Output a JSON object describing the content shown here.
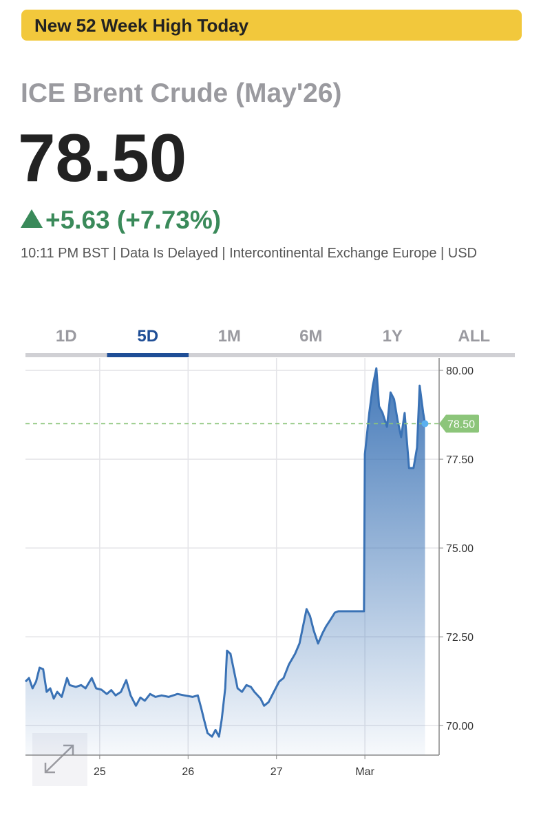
{
  "header": {
    "banner": "New 52 Week High Today",
    "name": "ICE Brent Crude (May'26)",
    "price": "78.50",
    "change": "+5.63 (+7.73%)",
    "meta": "10:11 PM BST | Data Is Delayed | Intercontinental Exchange Europe | USD"
  },
  "tabs": {
    "items": [
      "1D",
      "5D",
      "1M",
      "6M",
      "1Y",
      "ALL"
    ],
    "selected": "5D"
  },
  "chart_data": {
    "type": "area",
    "x": [
      24.16,
      24.2,
      24.24,
      24.28,
      24.32,
      24.36,
      24.4,
      24.44,
      24.48,
      24.52,
      24.57,
      24.63,
      24.66,
      24.73,
      24.79,
      24.84,
      24.91,
      24.96,
      25.02,
      25.08,
      25.13,
      25.18,
      25.24,
      25.3,
      25.35,
      25.41,
      25.46,
      25.51,
      25.57,
      25.63,
      25.7,
      25.78,
      25.88,
      25.96,
      26.05,
      26.11,
      26.15,
      26.18,
      26.22,
      26.27,
      26.31,
      26.35,
      26.38,
      26.42,
      26.44,
      26.48,
      26.52,
      26.56,
      26.61,
      26.66,
      26.71,
      26.75,
      26.82,
      26.86,
      26.91,
      26.97,
      27.03,
      27.08,
      27.14,
      27.21,
      27.26,
      27.3,
      27.34,
      27.38,
      27.42,
      27.47,
      27.52,
      27.56,
      27.61,
      27.66,
      27.7,
      27.75,
      27.99,
      28.0,
      28.05,
      28.09,
      28.13,
      28.16,
      28.2,
      28.25,
      28.29,
      28.33,
      28.37,
      28.41,
      28.45,
      28.5,
      28.55,
      28.59,
      28.62,
      28.66,
      28.68
    ],
    "series": [
      {
        "color": "#3a72b5",
        "values": [
          71.24,
          71.34,
          71.05,
          71.24,
          71.63,
          71.59,
          70.95,
          71.05,
          70.76,
          70.95,
          70.81,
          71.34,
          71.14,
          71.09,
          71.14,
          71.05,
          71.34,
          71.05,
          71.01,
          70.89,
          71.0,
          70.85,
          70.95,
          71.28,
          70.85,
          70.56,
          70.79,
          70.7,
          70.89,
          70.81,
          70.85,
          70.81,
          70.89,
          70.85,
          70.81,
          70.85,
          70.47,
          70.17,
          69.79,
          69.69,
          69.88,
          69.69,
          70.17,
          71.05,
          72.11,
          72.02,
          71.53,
          71.05,
          70.95,
          71.14,
          71.09,
          70.95,
          70.76,
          70.56,
          70.66,
          70.95,
          71.24,
          71.34,
          71.72,
          72.02,
          72.31,
          72.79,
          73.28,
          73.08,
          72.69,
          72.31,
          72.6,
          72.79,
          72.98,
          73.18,
          73.22,
          73.22,
          73.22,
          77.64,
          78.8,
          79.57,
          80.06,
          78.99,
          78.8,
          78.41,
          79.38,
          79.19,
          78.6,
          78.12,
          78.8,
          77.25,
          77.25,
          77.83,
          79.57,
          78.8,
          78.5
        ]
      }
    ],
    "xlim": [
      24.16,
      28.84
    ],
    "xticks": [
      25,
      26,
      27,
      {
        "value": 28,
        "label": "Mar"
      }
    ],
    "ylim": [
      69.17,
      80.35
    ],
    "yticks": [
      {
        "value": 70,
        "label": "70.00"
      },
      {
        "value": 72.5,
        "label": "72.50"
      },
      {
        "value": 75,
        "label": "75.00"
      },
      {
        "value": 77.5,
        "label": "77.50"
      },
      {
        "value": 80,
        "label": "80.00"
      }
    ],
    "grid": true,
    "reference_line": {
      "value": 78.5,
      "label": "78.50",
      "color": "#8cc57a"
    }
  }
}
